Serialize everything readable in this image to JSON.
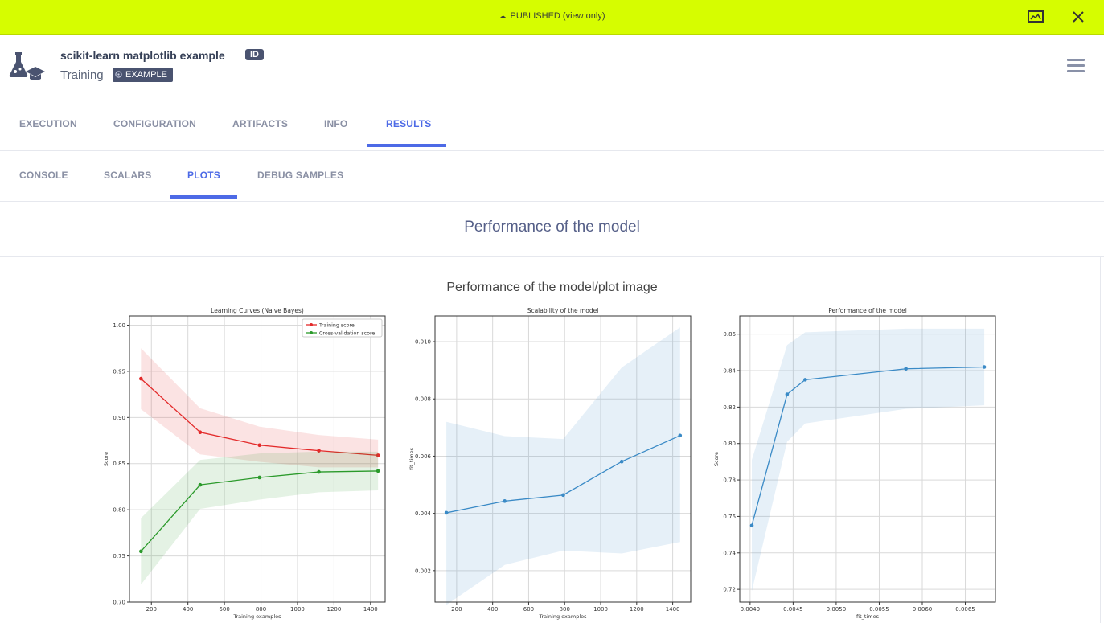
{
  "banner": {
    "status": "PUBLISHED (view only)"
  },
  "header": {
    "title": "scikit-learn matplotlib example",
    "id_badge": "ID",
    "project": "Training",
    "tag": "EXAMPLE"
  },
  "tabs": [
    "EXECUTION",
    "CONFIGURATION",
    "ARTIFACTS",
    "INFO",
    "RESULTS"
  ],
  "active_tab": "RESULTS",
  "subtabs": [
    "CONSOLE",
    "SCALARS",
    "PLOTS",
    "DEBUG SAMPLES"
  ],
  "active_subtab": "PLOTS",
  "section_title": "Performance of the model",
  "plot_title": "Performance of the model/plot image",
  "colors": {
    "accent": "#4d6ae6",
    "banner": "#d6fd00",
    "train": "#e32a2a",
    "cv": "#2b9a2b",
    "blue": "#3a8ac6"
  },
  "chart_data": [
    {
      "type": "line",
      "title": "Learning Curves (Naive Bayes)",
      "xlabel": "Training examples",
      "ylabel": "Score",
      "xlim": [
        80,
        1480
      ],
      "ylim": [
        0.7,
        1.01
      ],
      "xticks": [
        200,
        400,
        600,
        800,
        1000,
        1200,
        1400
      ],
      "yticks": [
        0.7,
        0.75,
        0.8,
        0.85,
        0.9,
        0.95,
        1.0
      ],
      "ytick_format": 2,
      "grid": true,
      "legend": "top-right",
      "x": [
        143,
        467,
        792,
        1117,
        1441
      ],
      "series": [
        {
          "name": "Training score",
          "color": "#e32a2a",
          "values": [
            0.942,
            0.884,
            0.87,
            0.864,
            0.859
          ],
          "lower": [
            0.909,
            0.86,
            0.852,
            0.846,
            0.846
          ],
          "upper": [
            0.975,
            0.91,
            0.89,
            0.881,
            0.876
          ]
        },
        {
          "name": "Cross-validation score",
          "color": "#2b9a2b",
          "values": [
            0.755,
            0.827,
            0.835,
            0.841,
            0.842
          ],
          "lower": [
            0.719,
            0.801,
            0.811,
            0.819,
            0.821
          ],
          "upper": [
            0.791,
            0.854,
            0.861,
            0.863,
            0.863
          ]
        }
      ]
    },
    {
      "type": "line",
      "title": "Scalability of the model",
      "xlabel": "Training examples",
      "ylabel": "fit_times",
      "xlim": [
        80,
        1500
      ],
      "ylim": [
        0.0009,
        0.0109
      ],
      "xticks": [
        200,
        400,
        600,
        800,
        1000,
        1200,
        1400
      ],
      "yticks": [
        0.002,
        0.004,
        0.006,
        0.008,
        0.01
      ],
      "ytick_format": 3,
      "grid": true,
      "x": [
        143,
        467,
        792,
        1117,
        1441
      ],
      "series": [
        {
          "name": "",
          "color": "#3a8ac6",
          "values": [
            0.00402,
            0.00443,
            0.00464,
            0.00581,
            0.00672
          ],
          "lower": [
            0.0008,
            0.0022,
            0.0027,
            0.0026,
            0.003
          ],
          "upper": [
            0.0072,
            0.0067,
            0.0066,
            0.0091,
            0.0105
          ]
        }
      ]
    },
    {
      "type": "line",
      "title": "Performance of the model",
      "xlabel": "fit_times",
      "ylabel": "Score",
      "xlim": [
        0.00388,
        0.00685
      ],
      "ylim": [
        0.713,
        0.87
      ],
      "xticks": [
        0.004,
        0.0045,
        0.005,
        0.0055,
        0.006,
        0.0065
      ],
      "yticks": [
        0.72,
        0.74,
        0.76,
        0.78,
        0.8,
        0.82,
        0.84,
        0.86
      ],
      "xtick_format": 4,
      "ytick_format": 2,
      "grid": true,
      "x": [
        0.00402,
        0.00443,
        0.00464,
        0.00581,
        0.00672
      ],
      "series": [
        {
          "name": "",
          "color": "#3a8ac6",
          "values": [
            0.755,
            0.827,
            0.835,
            0.841,
            0.842
          ],
          "lower": [
            0.719,
            0.801,
            0.811,
            0.819,
            0.821
          ],
          "upper": [
            0.791,
            0.854,
            0.861,
            0.863,
            0.863
          ]
        }
      ]
    }
  ]
}
